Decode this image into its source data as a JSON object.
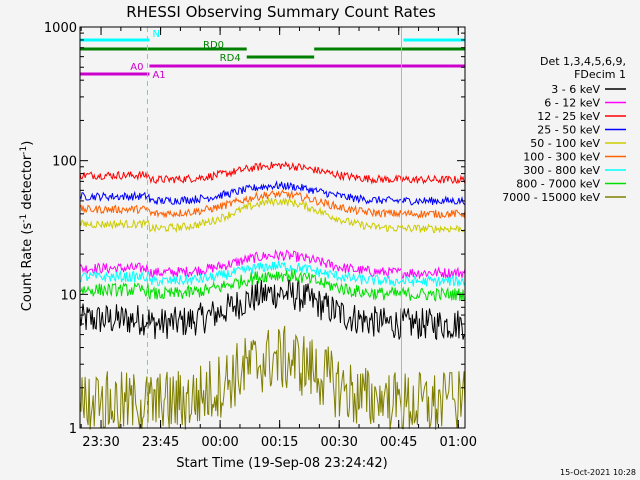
{
  "chart_data": {
    "type": "line",
    "title": "RHESSI Observing Summary Count Rates",
    "xlabel": "Start Time (19-Sep-08 23:24:42)",
    "ylabel_parts": [
      "Count Rate (s",
      "-1",
      " detector",
      "-1",
      ")"
    ],
    "y_scale": "log",
    "ylim": [
      1,
      1000
    ],
    "y_ticks": [
      {
        "value": 1,
        "label": "1"
      },
      {
        "value": 10,
        "label": "10"
      },
      {
        "value": 100,
        "label": "100"
      },
      {
        "value": 1000,
        "label": "1000"
      }
    ],
    "xlim_minutes": [
      0,
      97
    ],
    "x_ticks": [
      {
        "minute": 5.3,
        "label": "23:30"
      },
      {
        "minute": 20.3,
        "label": "23:45"
      },
      {
        "minute": 35.3,
        "label": "00:00"
      },
      {
        "minute": 50.3,
        "label": "00:15"
      },
      {
        "minute": 65.3,
        "label": "00:30"
      },
      {
        "minute": 80.3,
        "label": "00:45"
      },
      {
        "minute": 95.3,
        "label": "01:00"
      }
    ],
    "legend_header": [
      "Det 1,3,4,5,6,9,",
      "FDecim 1"
    ],
    "series": [
      {
        "name": "3 - 6 keV",
        "color": "#000000",
        "base": 6.0,
        "bump": 1.7,
        "jitter": 0.12
      },
      {
        "name": "6 - 12 keV",
        "color": "#ff00ff",
        "base": 14.5,
        "bump": 1.35,
        "jitter": 0.04
      },
      {
        "name": "12 - 25 keV",
        "color": "#ff0000",
        "base": 72,
        "bump": 1.28,
        "jitter": 0.03
      },
      {
        "name": "25 - 50 keV",
        "color": "#0000ff",
        "base": 50,
        "bump": 1.3,
        "jitter": 0.03
      },
      {
        "name": "50 - 100 keV",
        "color": "#cccc00",
        "base": 31,
        "bump": 1.6,
        "jitter": 0.03
      },
      {
        "name": "100 - 300 keV",
        "color": "#ff6000",
        "base": 40,
        "bump": 1.4,
        "jitter": 0.03
      },
      {
        "name": "300 - 800 keV",
        "color": "#00ffff",
        "base": 12.5,
        "bump": 1.3,
        "jitter": 0.04
      },
      {
        "name": "800 - 7000 keV",
        "color": "#00e000",
        "base": 10,
        "bump": 1.4,
        "jitter": 0.05
      },
      {
        "name": "7000 - 15000 keV",
        "color": "#808000",
        "base": 1.5,
        "bump": 2.2,
        "jitter": 0.25
      }
    ],
    "flag_bars": [
      {
        "label": "N",
        "color": "#00ffff",
        "segments": [
          [
            0,
            17.5
          ],
          [
            81.5,
            97
          ]
        ],
        "level": 0
      },
      {
        "label": "RD0",
        "color": "#008000",
        "segments": [
          [
            0,
            42
          ],
          [
            59,
            97
          ]
        ],
        "level": 1
      },
      {
        "label": "RD4",
        "color": "#008000",
        "segments": [
          [
            42,
            59
          ]
        ],
        "level": 2
      },
      {
        "label": "A0",
        "color": "#cc00cc",
        "segments": [
          [
            17.5,
            97
          ]
        ],
        "level": 3
      },
      {
        "label": "A1",
        "color": "#cc00cc",
        "segments": [
          [
            0,
            17.5
          ]
        ],
        "level": 4
      }
    ],
    "vertical_markers": [
      {
        "minute": 0,
        "style": "solid"
      },
      {
        "minute": 17,
        "style": "dashed"
      },
      {
        "minute": 81,
        "style": "solid"
      },
      {
        "minute": 97,
        "style": "dashed"
      }
    ],
    "footer_date": "15-Oct-2021 10:28"
  },
  "colors": {
    "background": "#f4f4f4",
    "axis": "#000000"
  }
}
